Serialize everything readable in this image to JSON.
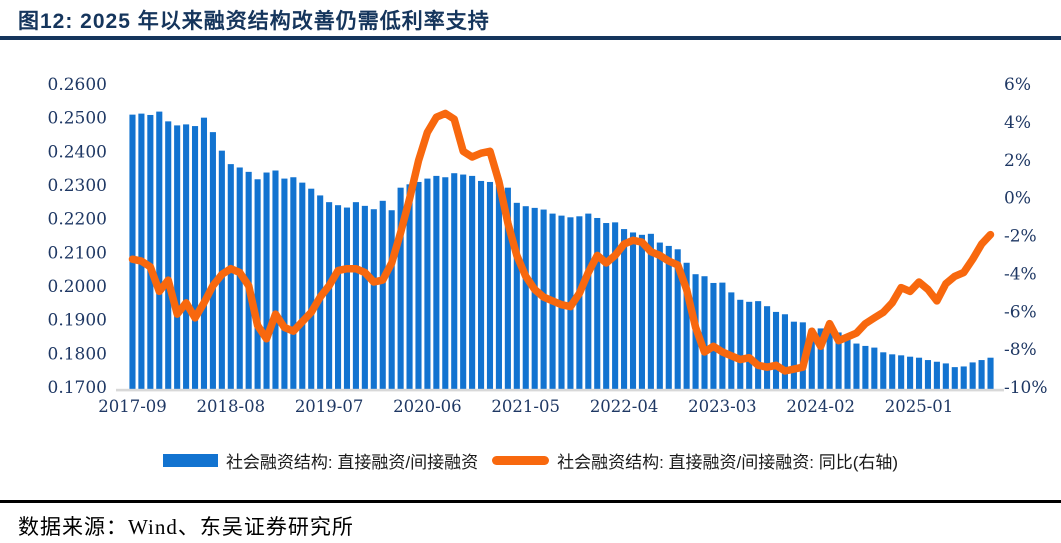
{
  "figure": {
    "title": "图12:  2025 年以来融资结构改善仍需低利率支持",
    "source": "数据来源：Wind、东吴证券研究所"
  },
  "legend": [
    {
      "label": "社会融资结构:  直接融资/间接融资",
      "type": "bar",
      "color": "#1273d0"
    },
    {
      "label": "社会融资结构:  直接融资/间接融资: 同比(右轴)",
      "type": "line",
      "color": "#f8680e"
    }
  ],
  "colors": {
    "bar_blue": "#1273d0",
    "line_orange": "#f8680e",
    "title_navy": "#15355c",
    "axis_text": "#1f3864",
    "baseline_gray": "#d8d8d8",
    "rule_black": "#000000"
  },
  "chart_data": {
    "type": "combo-bar-line",
    "title": "2025 年以来融资结构改善仍需低利率支持",
    "grid": false,
    "legend_position": "bottom",
    "x": [
      "2017-09",
      "2017-10",
      "2017-11",
      "2017-12",
      "2018-01",
      "2018-02",
      "2018-03",
      "2018-04",
      "2018-05",
      "2018-06",
      "2018-07",
      "2018-08",
      "2018-09",
      "2018-10",
      "2018-11",
      "2018-12",
      "2019-01",
      "2019-02",
      "2019-03",
      "2019-04",
      "2019-05",
      "2019-06",
      "2019-07",
      "2019-08",
      "2019-09",
      "2019-10",
      "2019-11",
      "2019-12",
      "2020-01",
      "2020-02",
      "2020-03",
      "2020-04",
      "2020-05",
      "2020-06",
      "2020-07",
      "2020-08",
      "2020-09",
      "2020-10",
      "2020-11",
      "2020-12",
      "2021-01",
      "2021-02",
      "2021-03",
      "2021-04",
      "2021-05",
      "2021-06",
      "2021-07",
      "2021-08",
      "2021-09",
      "2021-10",
      "2021-11",
      "2021-12",
      "2022-01",
      "2022-02",
      "2022-03",
      "2022-04",
      "2022-05",
      "2022-06",
      "2022-07",
      "2022-08",
      "2022-09",
      "2022-10",
      "2022-11",
      "2022-12",
      "2023-01",
      "2023-02",
      "2023-03",
      "2023-04",
      "2023-05",
      "2023-06",
      "2023-07",
      "2023-08",
      "2023-09",
      "2023-10",
      "2023-11",
      "2023-12",
      "2024-01",
      "2024-02",
      "2024-03",
      "2024-04",
      "2024-05",
      "2024-06",
      "2024-07",
      "2024-08",
      "2024-09",
      "2024-10",
      "2024-11",
      "2024-12",
      "2025-01",
      "2025-02",
      "2025-03",
      "2025-04",
      "2025-05",
      "2025-06",
      "2025-07",
      "2025-08",
      "2025-09"
    ],
    "series": [
      {
        "name": "社会融资结构:  直接融资/间接融资",
        "type": "bar",
        "axis": "left",
        "color": "#1273d0",
        "values": [
          0.2512,
          0.2515,
          0.2511,
          0.2521,
          0.2492,
          0.248,
          0.2483,
          0.2478,
          0.2503,
          0.246,
          0.2405,
          0.2365,
          0.2355,
          0.2342,
          0.232,
          0.234,
          0.2346,
          0.2322,
          0.2326,
          0.231,
          0.2292,
          0.2272,
          0.2252,
          0.2243,
          0.2236,
          0.2252,
          0.2241,
          0.2231,
          0.2256,
          0.2228,
          0.2295,
          0.2305,
          0.2312,
          0.2322,
          0.233,
          0.2326,
          0.2338,
          0.2334,
          0.233,
          0.2315,
          0.2312,
          0.23,
          0.2295,
          0.225,
          0.224,
          0.2235,
          0.223,
          0.2218,
          0.2212,
          0.2207,
          0.221,
          0.2218,
          0.2205,
          0.219,
          0.2192,
          0.2172,
          0.2162,
          0.2155,
          0.2158,
          0.2132,
          0.2122,
          0.2112,
          0.2072,
          0.2038,
          0.2032,
          0.2012,
          0.2013,
          0.1984,
          0.1962,
          0.1956,
          0.1958,
          0.1943,
          0.1926,
          0.1919,
          0.1897,
          0.1895,
          0.1876,
          0.1877,
          0.1868,
          0.1865,
          0.1846,
          0.1832,
          0.1825,
          0.182,
          0.1806,
          0.18,
          0.1797,
          0.1793,
          0.179,
          0.1783,
          0.1778,
          0.1773,
          0.1762,
          0.1764,
          0.1776,
          0.1783,
          0.179
        ]
      },
      {
        "name": "社会融资结构:  直接融资/间接融资: 同比(右轴)",
        "type": "line",
        "axis": "right",
        "color": "#f8680e",
        "values": [
          -3.2,
          -3.3,
          -3.6,
          -4.9,
          -4.3,
          -6.1,
          -5.5,
          -6.3,
          -5.5,
          -4.6,
          -4.0,
          -3.7,
          -3.9,
          -4.6,
          -6.7,
          -7.4,
          -6.1,
          -6.8,
          -7.0,
          -6.5,
          -6.0,
          -5.2,
          -4.6,
          -3.8,
          -3.7,
          -3.7,
          -3.9,
          -4.4,
          -4.3,
          -3.4,
          -1.8,
          0.0,
          2.0,
          3.5,
          4.3,
          4.5,
          4.2,
          2.5,
          2.2,
          2.4,
          2.5,
          0.9,
          -1.3,
          -3.0,
          -4.1,
          -4.8,
          -5.2,
          -5.4,
          -5.6,
          -5.7,
          -5.0,
          -3.9,
          -3.0,
          -3.4,
          -3.0,
          -2.4,
          -2.2,
          -2.3,
          -2.8,
          -3.0,
          -3.3,
          -3.5,
          -4.8,
          -6.8,
          -8.1,
          -7.8,
          -8.1,
          -8.3,
          -8.5,
          -8.4,
          -8.8,
          -8.9,
          -8.8,
          -9.1,
          -9.0,
          -8.9,
          -7.0,
          -7.8,
          -6.6,
          -7.5,
          -7.3,
          -7.1,
          -6.6,
          -6.3,
          -6.0,
          -5.5,
          -4.7,
          -4.9,
          -4.4,
          -4.8,
          -5.4,
          -4.5,
          -4.1,
          -3.9,
          -3.2,
          -2.4,
          -1.9
        ]
      }
    ],
    "left_axis": {
      "min": 0.17,
      "max": 0.26,
      "ticks": [
        "0.2600",
        "0.2500",
        "0.2400",
        "0.2300",
        "0.2200",
        "0.2100",
        "0.2000",
        "0.1900",
        "0.1800",
        "0.1700"
      ]
    },
    "right_axis": {
      "min": -10,
      "max": 6,
      "unit": "%",
      "ticks": [
        "6%",
        "4%",
        "2%",
        "0%",
        "-2%",
        "-4%",
        "-6%",
        "-8%",
        "-10%"
      ]
    },
    "x_axis": {
      "tick_labels": [
        "2017-09",
        "2018-08",
        "2019-07",
        "2020-06",
        "2021-05",
        "2022-04",
        "2023-03",
        "2024-02",
        "2025-01"
      ]
    }
  }
}
